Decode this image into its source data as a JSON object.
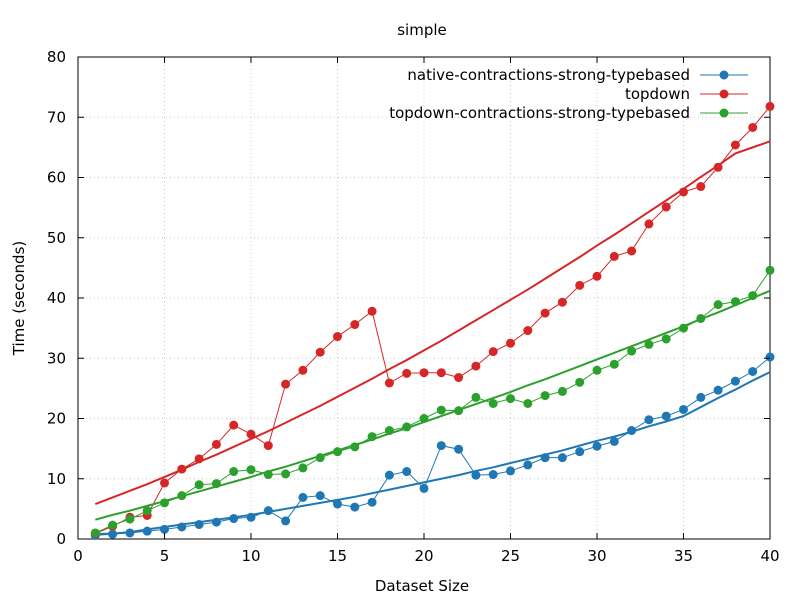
{
  "chart_data": {
    "type": "line",
    "title": "simple",
    "xlabel": "Dataset Size",
    "ylabel": "Time (seconds)",
    "xlim": [
      0,
      40
    ],
    "ylim": [
      0,
      80
    ],
    "xticks": [
      0,
      5,
      10,
      15,
      20,
      25,
      30,
      35,
      40
    ],
    "yticks": [
      0,
      10,
      20,
      30,
      40,
      50,
      60,
      70,
      80
    ],
    "grid": true,
    "legend_position": "top-right",
    "x": [
      1,
      2,
      3,
      4,
      5,
      6,
      7,
      8,
      9,
      10,
      11,
      12,
      13,
      14,
      15,
      16,
      17,
      18,
      19,
      20,
      21,
      22,
      23,
      24,
      25,
      26,
      27,
      28,
      29,
      30,
      31,
      32,
      33,
      34,
      35,
      36,
      37,
      38,
      39,
      40
    ],
    "series": [
      {
        "name": "native-contractions-strong-typebased",
        "color": "#1f77b4",
        "values": [
          0.6,
          0.8,
          1.0,
          1.3,
          1.6,
          2.0,
          2.4,
          2.8,
          3.4,
          3.6,
          4.7,
          3.0,
          6.9,
          7.2,
          5.8,
          5.3,
          6.1,
          10.6,
          11.2,
          8.4,
          15.5,
          14.9,
          10.6,
          10.7,
          11.3,
          12.3,
          13.5,
          13.5,
          14.5,
          15.4,
          16.2,
          18.0,
          19.8,
          20.4,
          21.5,
          23.5,
          24.7,
          26.2,
          27.8,
          30.2
        ],
        "fit": [
          0.84,
          0.9,
          1.15,
          1.6,
          2.0,
          2.4,
          2.8,
          3.2,
          3.6,
          4.0,
          4.5,
          5.0,
          5.5,
          6.0,
          6.5,
          7.0,
          7.6,
          8.2,
          8.8,
          9.4,
          10.0,
          10.6,
          11.3,
          11.9,
          12.6,
          13.3,
          14.0,
          14.7,
          15.5,
          16.3,
          17.0,
          17.8,
          18.7,
          19.5,
          20.4,
          21.9,
          23.4,
          24.8,
          26.3,
          27.7
        ]
      },
      {
        "name": "topdown",
        "color": "#d62728",
        "values": [
          0.9,
          2.1,
          3.6,
          3.9,
          9.3,
          11.6,
          13.3,
          15.7,
          18.9,
          17.4,
          15.5,
          25.7,
          28.0,
          31.0,
          33.6,
          35.6,
          37.8,
          25.9,
          27.5,
          27.6,
          27.6,
          26.8,
          28.7,
          31.1,
          32.5,
          34.6,
          37.5,
          39.3,
          42.1,
          43.6,
          46.9,
          47.8,
          52.3,
          55.1,
          57.6,
          58.5,
          61.7,
          65.4,
          68.3,
          71.8
        ],
        "fit": [
          5.8,
          6.9,
          8.0,
          9.1,
          10.3,
          11.5,
          12.8,
          14.0,
          15.3,
          16.6,
          17.9,
          19.3,
          20.7,
          22.1,
          23.6,
          25.1,
          26.6,
          28.2,
          29.7,
          31.3,
          32.9,
          34.6,
          36.3,
          38.0,
          39.7,
          41.4,
          43.2,
          45.0,
          46.8,
          48.7,
          50.5,
          52.4,
          54.3,
          56.2,
          58.1,
          60.1,
          62.0,
          64.0,
          65.0,
          66.0
        ]
      },
      {
        "name": "topdown-contractions-strong-typebased",
        "color": "#2ca02c",
        "values": [
          1.0,
          2.3,
          3.3,
          4.7,
          6.0,
          7.2,
          9.0,
          9.2,
          11.2,
          11.5,
          10.7,
          10.8,
          11.8,
          13.5,
          14.5,
          15.3,
          17.0,
          18.0,
          18.6,
          20.0,
          21.4,
          21.3,
          23.5,
          22.5,
          23.3,
          22.5,
          23.8,
          24.5,
          26.0,
          28.0,
          29.0,
          31.2,
          32.3,
          33.2,
          35.0,
          36.6,
          38.9,
          39.4,
          40.4,
          44.6
        ],
        "fit": [
          3.2,
          4.0,
          4.7,
          5.5,
          6.3,
          7.1,
          7.9,
          8.7,
          9.5,
          10.3,
          11.2,
          12.0,
          12.9,
          13.8,
          14.7,
          15.6,
          16.5,
          17.5,
          18.4,
          19.4,
          20.4,
          21.4,
          22.4,
          23.4,
          24.4,
          25.5,
          26.5,
          27.6,
          28.7,
          29.8,
          30.9,
          32.0,
          33.1,
          34.2,
          35.3,
          36.5,
          37.6,
          38.8,
          40.0,
          41.2
        ]
      }
    ]
  }
}
